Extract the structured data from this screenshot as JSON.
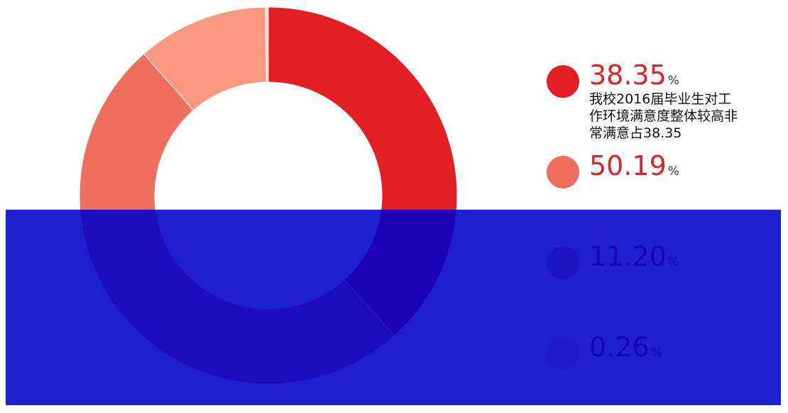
{
  "chart_data": {
    "type": "pie",
    "donut": true,
    "values": [
      38.35,
      50.19,
      11.2,
      0.26
    ],
    "value_labels": [
      "38.35%",
      "50.19%",
      "11.20%",
      "0.26%"
    ],
    "colors": [
      "#e31e24",
      "#ee6f5e",
      "#f7987f",
      "#fbd4c8"
    ],
    "descriptions": [
      "我校2016届毕业生对工作环境满意度整体较高非常满意占38.35"
    ]
  }
}
